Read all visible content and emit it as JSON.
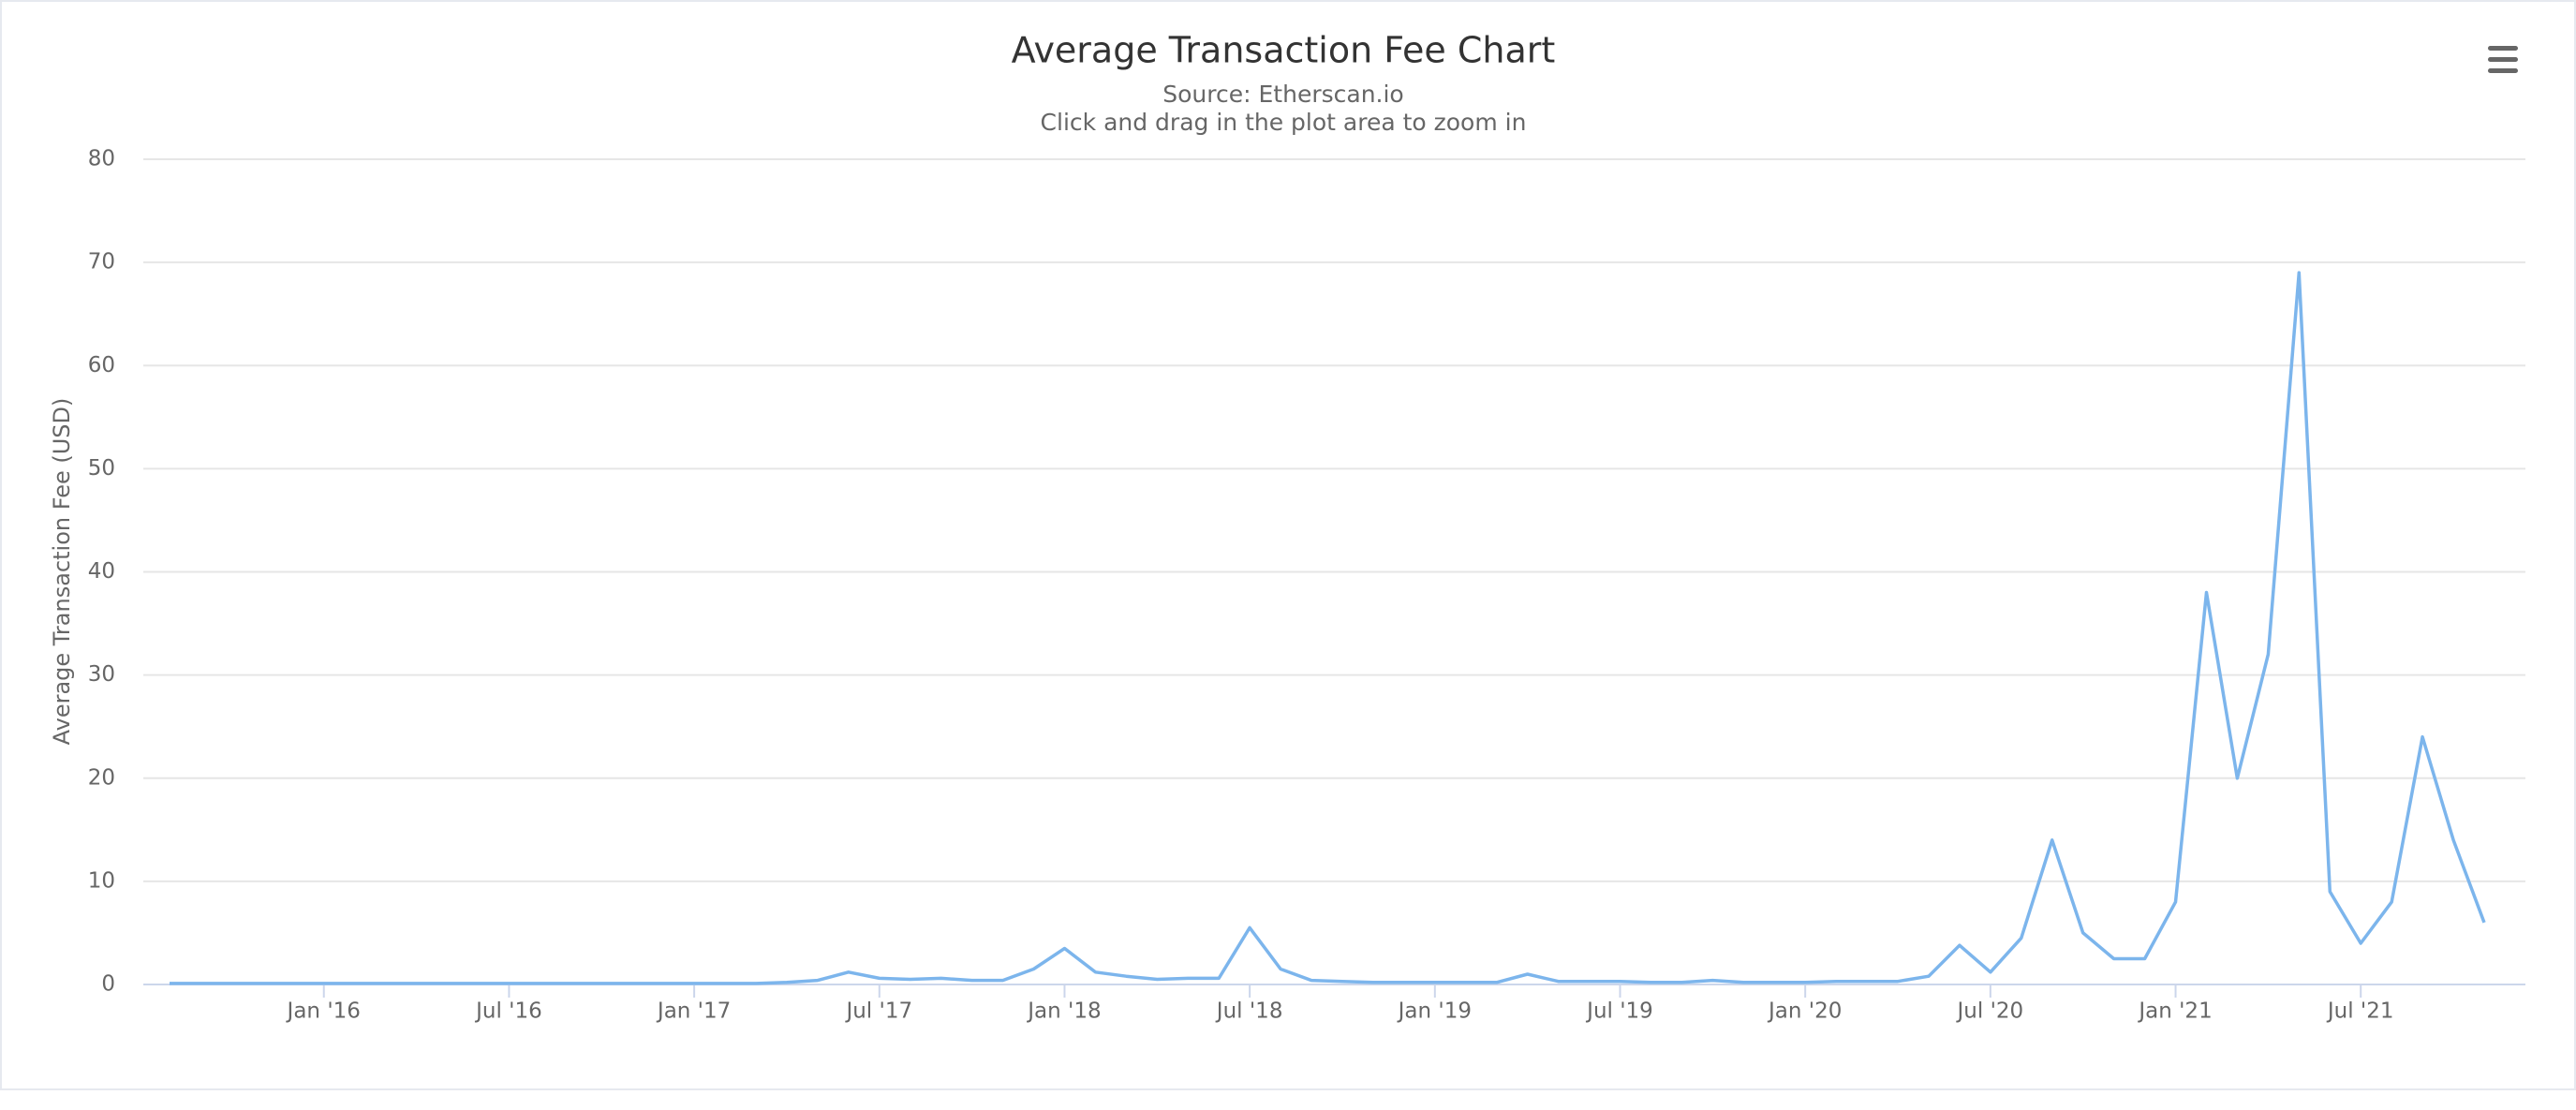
{
  "chart_data": {
    "type": "line",
    "title": "Average Transaction Fee Chart",
    "subtitle": "Source: Etherscan.io",
    "caption": "Click and drag in the plot area to zoom in",
    "y_label": "Average Transaction Fee (USD)",
    "color": "#7cb5ec",
    "grid": true,
    "x": [
      "2015-08",
      "2015-09",
      "2015-10",
      "2015-11",
      "2015-12",
      "2016-01",
      "2016-02",
      "2016-03",
      "2016-04",
      "2016-05",
      "2016-06",
      "2016-07",
      "2016-08",
      "2016-09",
      "2016-10",
      "2016-11",
      "2016-12",
      "2017-01",
      "2017-02",
      "2017-03",
      "2017-04",
      "2017-05",
      "2017-06",
      "2017-07",
      "2017-08",
      "2017-09",
      "2017-10",
      "2017-11",
      "2017-12",
      "2018-01",
      "2018-02",
      "2018-03",
      "2018-04",
      "2018-05",
      "2018-06",
      "2018-07",
      "2018-08",
      "2018-09",
      "2018-10",
      "2018-11",
      "2018-12",
      "2019-01",
      "2019-02",
      "2019-03",
      "2019-04",
      "2019-05",
      "2019-06",
      "2019-07",
      "2019-08",
      "2019-09",
      "2019-10",
      "2019-11",
      "2019-12",
      "2020-01",
      "2020-02",
      "2020-03",
      "2020-04",
      "2020-05",
      "2020-06",
      "2020-07",
      "2020-08",
      "2020-09",
      "2020-10",
      "2020-11",
      "2020-12",
      "2021-01",
      "2021-02",
      "2021-03",
      "2021-04",
      "2021-05",
      "2021-06",
      "2021-07",
      "2021-08",
      "2021-09",
      "2021-10",
      "2021-11"
    ],
    "values": [
      0.1,
      0.1,
      0.1,
      0.1,
      0.1,
      0.1,
      0.1,
      0.1,
      0.1,
      0.1,
      0.1,
      0.1,
      0.1,
      0.1,
      0.1,
      0.1,
      0.1,
      0.1,
      0.1,
      0.1,
      0.2,
      0.4,
      1.2,
      0.6,
      0.5,
      0.6,
      0.4,
      0.4,
      1.5,
      3.5,
      1.2,
      0.8,
      0.5,
      0.6,
      0.6,
      5.5,
      1.5,
      0.4,
      0.3,
      0.2,
      0.2,
      0.2,
      0.2,
      0.2,
      1.0,
      0.3,
      0.3,
      0.3,
      0.2,
      0.2,
      0.4,
      0.2,
      0.2,
      0.2,
      0.3,
      0.3,
      0.3,
      0.8,
      3.8,
      1.2,
      4.5,
      14,
      5,
      2.5,
      2.5,
      8,
      38,
      20,
      32,
      69,
      9,
      4,
      8,
      24,
      14,
      6
    ],
    "xlim": [
      "2015-08",
      "2021-11"
    ],
    "xticks": [
      {
        "value": "2016-01",
        "label": "Jan '16"
      },
      {
        "value": "2016-07",
        "label": "Jul '16"
      },
      {
        "value": "2017-01",
        "label": "Jan '17"
      },
      {
        "value": "2017-07",
        "label": "Jul '17"
      },
      {
        "value": "2018-01",
        "label": "Jan '18"
      },
      {
        "value": "2018-07",
        "label": "Jul '18"
      },
      {
        "value": "2019-01",
        "label": "Jan '19"
      },
      {
        "value": "2019-07",
        "label": "Jul '19"
      },
      {
        "value": "2020-01",
        "label": "Jan '20"
      },
      {
        "value": "2020-07",
        "label": "Jul '20"
      },
      {
        "value": "2021-01",
        "label": "Jan '21"
      },
      {
        "value": "2021-07",
        "label": "Jul '21"
      }
    ],
    "ylim": [
      0,
      80
    ],
    "yticks": [
      0,
      10,
      20,
      30,
      40,
      50,
      60,
      70,
      80
    ]
  }
}
